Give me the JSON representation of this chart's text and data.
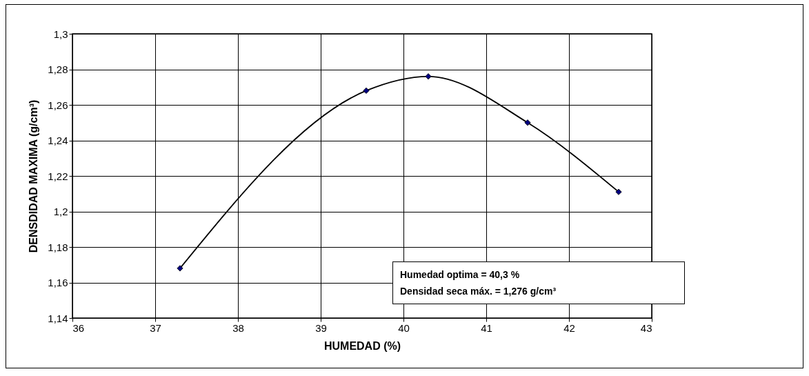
{
  "chart_data": {
    "type": "line",
    "xlabel": "HUMEDAD (%)",
    "ylabel": "DENSDIDAD MAXIMA (g/cm³)",
    "x": [
      37.3,
      39.55,
      40.3,
      41.5,
      42.6
    ],
    "series": [
      {
        "color": "#000080",
        "values": [
          1.168,
          1.268,
          1.276,
          1.25,
          1.211
        ]
      }
    ],
    "xlim": [
      36,
      43
    ],
    "xticks": [
      36,
      37,
      38,
      39,
      40,
      41,
      42,
      43
    ],
    "ylim": [
      1.14,
      1.3
    ],
    "yticks": [
      {
        "value": 1.14,
        "label": "1,14"
      },
      {
        "value": 1.16,
        "label": "1,16"
      },
      {
        "value": 1.18,
        "label": "1,18"
      },
      {
        "value": 1.2,
        "label": "1,2"
      },
      {
        "value": 1.22,
        "label": "1,22"
      },
      {
        "value": 1.24,
        "label": "1,24"
      },
      {
        "value": 1.26,
        "label": "1,26"
      },
      {
        "value": 1.28,
        "label": "1,28"
      },
      {
        "value": 1.3,
        "label": "1,3"
      }
    ],
    "annotations": [
      "Humedad optima = 40,3 %",
      "Densidad seca máx. = 1,276 g/cm³"
    ],
    "grid": true,
    "marker": "diamond",
    "line_style": "solid"
  }
}
